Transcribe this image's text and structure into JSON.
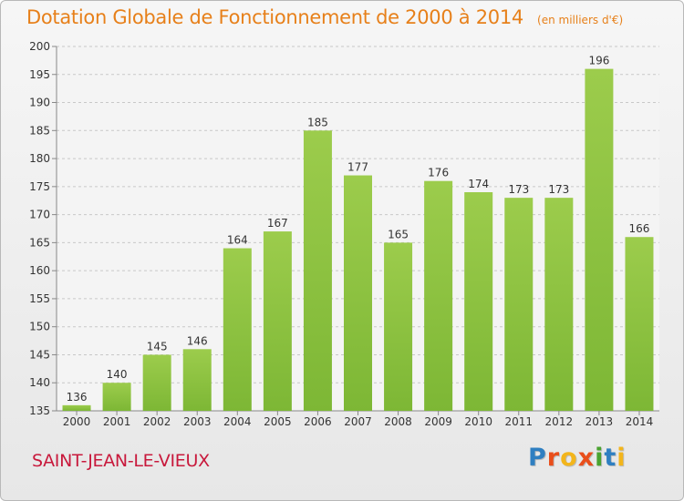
{
  "chart_data": {
    "type": "bar",
    "title": "Dotation Globale de Fonctionnement de 2000 à 2014",
    "subtitle": "(en milliers d'€)",
    "categories": [
      "2000",
      "2001",
      "2002",
      "2003",
      "2004",
      "2005",
      "2006",
      "2007",
      "2008",
      "2009",
      "2010",
      "2011",
      "2012",
      "2013",
      "2014"
    ],
    "values": [
      136,
      140,
      145,
      146,
      164,
      167,
      185,
      177,
      165,
      176,
      174,
      173,
      173,
      196,
      166
    ],
    "ylim": [
      135,
      200
    ],
    "yticks": [
      135,
      140,
      145,
      150,
      155,
      160,
      165,
      170,
      175,
      180,
      185,
      190,
      195,
      200
    ],
    "grid": true,
    "bar_color": "#7db735",
    "bar_color_light": "#9ccc4c",
    "xlabel": "",
    "ylabel": ""
  },
  "commune": "SAINT-JEAN-LE-VIEUX",
  "logo": {
    "letters": [
      "P",
      "r",
      "o",
      "x",
      "i",
      "t",
      "i"
    ],
    "colors": [
      "#2f7fc1",
      "#e94e1b",
      "#f3b51b",
      "#e94e1b",
      "#4aa32f",
      "#2f7fc1",
      "#f3b51b"
    ]
  },
  "colors": {
    "title": "#e7801a",
    "commune": "#c8193c"
  }
}
